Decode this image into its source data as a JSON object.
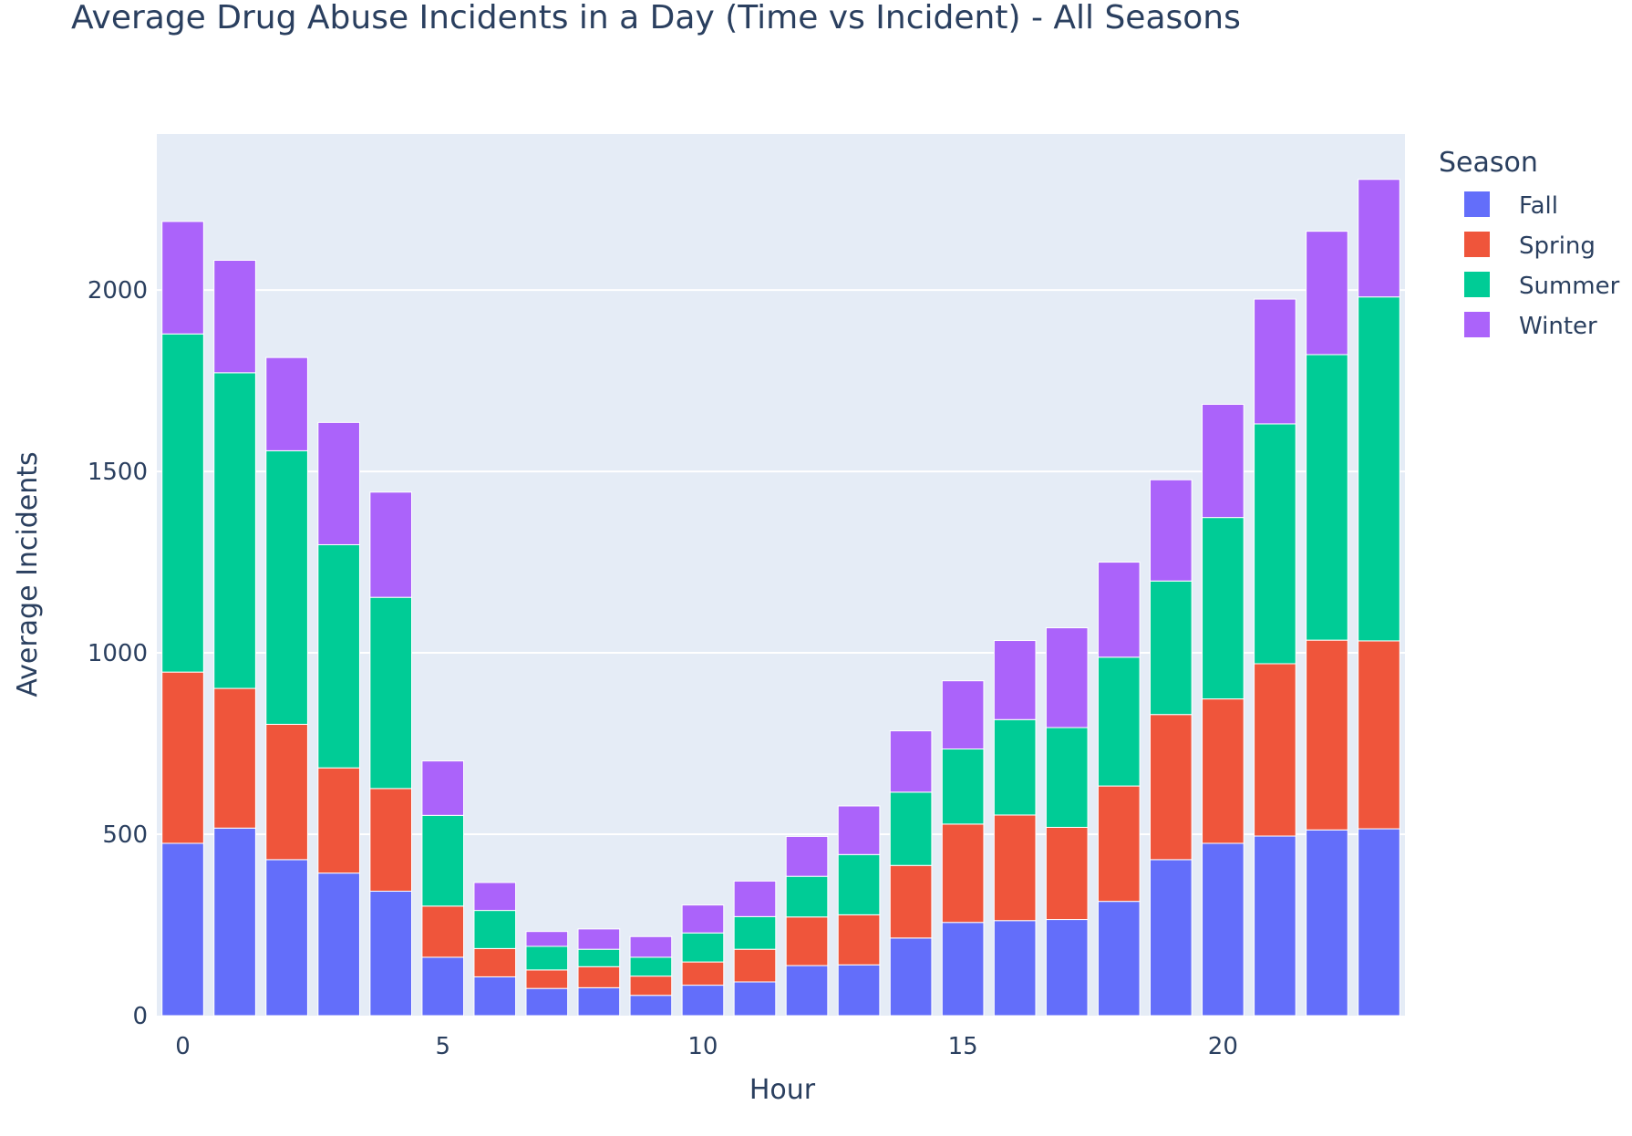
{
  "chart_data": {
    "type": "bar",
    "barmode": "stack",
    "title": "Average Drug Abuse Incidents in a Day (Time vs Incident) - All Seasons",
    "xlabel": "Hour",
    "ylabel": "Average Incidents",
    "x": [
      0,
      1,
      2,
      3,
      4,
      5,
      6,
      7,
      8,
      9,
      10,
      11,
      12,
      13,
      14,
      15,
      16,
      17,
      18,
      19,
      20,
      21,
      22,
      23
    ],
    "x_ticks": [
      0,
      5,
      10,
      15,
      20
    ],
    "y_ticks": [
      0,
      500,
      1000,
      1500,
      2000
    ],
    "ylim": [
      0,
      2430
    ],
    "xlim": [
      -0.5,
      23.5
    ],
    "grid": true,
    "legend": {
      "title": "Season",
      "placement": "top-right"
    },
    "series": [
      {
        "name": "Fall",
        "color": "#636efa",
        "values": [
          475,
          517,
          430,
          393,
          343,
          161,
          107,
          75,
          77,
          56,
          84,
          93,
          138,
          140,
          214,
          257,
          262,
          265,
          315,
          430,
          475,
          495,
          512,
          515
        ]
      },
      {
        "name": "Spring",
        "color": "#ef553b",
        "values": [
          472,
          385,
          373,
          290,
          283,
          141,
          78,
          51,
          58,
          53,
          64,
          90,
          134,
          138,
          200,
          271,
          291,
          254,
          318,
          400,
          398,
          475,
          523,
          518
        ]
      },
      {
        "name": "Summer",
        "color": "#00cc96",
        "values": [
          932,
          870,
          754,
          615,
          527,
          250,
          105,
          65,
          48,
          52,
          80,
          90,
          112,
          166,
          202,
          207,
          263,
          275,
          355,
          368,
          500,
          661,
          787,
          948
        ]
      },
      {
        "name": "Winter",
        "color": "#ab63fa",
        "values": [
          310,
          310,
          257,
          337,
          290,
          150,
          77,
          41,
          56,
          57,
          77,
          98,
          110,
          134,
          169,
          188,
          218,
          275,
          262,
          279,
          312,
          344,
          340,
          324
        ]
      }
    ]
  }
}
